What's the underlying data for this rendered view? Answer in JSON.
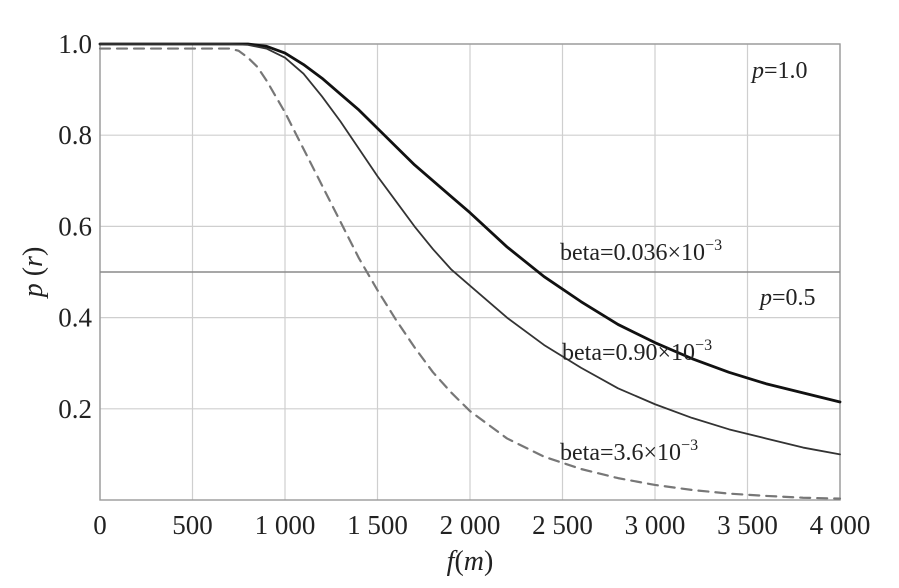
{
  "chart_data": {
    "type": "line",
    "xlabel_italic": "f",
    "xlabel_unit": "m",
    "ylabel_italic": "p",
    "ylabel_arg": "r",
    "xlim": [
      0,
      4000
    ],
    "ylim": [
      0,
      1.0
    ],
    "x_ticks": [
      0,
      500,
      1000,
      1500,
      2000,
      2500,
      3000,
      3500,
      4000
    ],
    "x_tick_labels": [
      "0",
      "500",
      "1 000",
      "1 500",
      "2 000",
      "2 500",
      "3 000",
      "3 500",
      "4 000"
    ],
    "y_ticks": [
      0.2,
      0.4,
      0.6,
      0.8,
      1.0
    ],
    "y_tick_labels": [
      "0.2",
      "0.4",
      "0.6",
      "0.8",
      "1.0"
    ],
    "grid": true,
    "reference_lines": [
      {
        "y": 1.0,
        "label_italic": "p",
        "label_rest": "=1.0"
      },
      {
        "y": 0.5,
        "label_italic": "p",
        "label_rest": "=0.5"
      }
    ],
    "series": [
      {
        "label_base": "beta=0.036×10",
        "label_exp": "−3",
        "color": "#111111",
        "dash": "",
        "x": [
          0,
          500,
          700,
          800,
          900,
          1000,
          1100,
          1200,
          1300,
          1400,
          1500,
          1600,
          1700,
          1800,
          1900,
          2000,
          2200,
          2400,
          2600,
          2800,
          3000,
          3200,
          3400,
          3600,
          3800,
          4000
        ],
        "y": [
          1.0,
          1.0,
          1.0,
          1.0,
          0.995,
          0.98,
          0.955,
          0.925,
          0.89,
          0.855,
          0.815,
          0.775,
          0.735,
          0.7,
          0.665,
          0.63,
          0.555,
          0.49,
          0.435,
          0.385,
          0.345,
          0.31,
          0.28,
          0.255,
          0.235,
          0.215
        ]
      },
      {
        "label_base": "beta=0.90×10",
        "label_exp": "−3",
        "color": "#333333",
        "dash": "",
        "x": [
          0,
          500,
          700,
          800,
          900,
          1000,
          1100,
          1200,
          1300,
          1400,
          1500,
          1600,
          1700,
          1800,
          1900,
          2000,
          2200,
          2400,
          2600,
          2800,
          3000,
          3200,
          3400,
          3600,
          3800,
          4000
        ],
        "y": [
          1.0,
          1.0,
          1.0,
          0.998,
          0.99,
          0.97,
          0.935,
          0.885,
          0.83,
          0.77,
          0.71,
          0.655,
          0.6,
          0.55,
          0.505,
          0.47,
          0.4,
          0.34,
          0.29,
          0.245,
          0.21,
          0.18,
          0.155,
          0.135,
          0.115,
          0.1
        ]
      },
      {
        "label_base": "beta=3.6×10",
        "label_exp": "−3",
        "color": "#777777",
        "dash": "10,7",
        "x": [
          0,
          500,
          700,
          750,
          800,
          850,
          900,
          1000,
          1100,
          1200,
          1300,
          1400,
          1500,
          1600,
          1700,
          1800,
          1900,
          2000,
          2200,
          2400,
          2600,
          2800,
          3000,
          3200,
          3400,
          3600,
          3800,
          4000
        ],
        "y": [
          0.99,
          0.99,
          0.99,
          0.985,
          0.97,
          0.95,
          0.92,
          0.85,
          0.77,
          0.69,
          0.61,
          0.53,
          0.46,
          0.395,
          0.335,
          0.28,
          0.235,
          0.195,
          0.135,
          0.095,
          0.068,
          0.048,
          0.033,
          0.022,
          0.014,
          0.009,
          0.005,
          0.003
        ]
      }
    ]
  }
}
